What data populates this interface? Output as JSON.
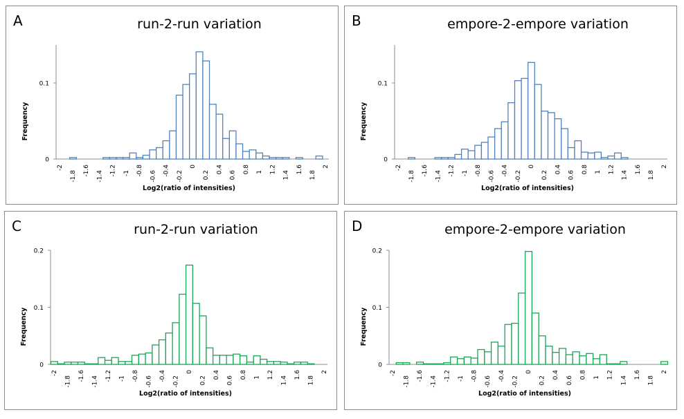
{
  "chart_data": [
    {
      "type": "bar",
      "panel_label": "A",
      "title": "run-2-run variation",
      "xlabel": "Log2(ratio of intensities)",
      "ylabel": "Frequency",
      "ylim": [
        0,
        0.15
      ],
      "yticks": [
        "0",
        "0.1"
      ],
      "ytick_values": [
        0,
        0.1
      ],
      "bar_color": "#4f81bd",
      "categories": [
        -2,
        -1.9,
        -1.8,
        -1.7,
        -1.6,
        -1.5,
        -1.4,
        -1.3,
        -1.2,
        -1.1,
        -1,
        -0.9,
        -0.8,
        -0.7,
        -0.6,
        -0.5,
        -0.4,
        -0.3,
        -0.2,
        -0.1,
        0,
        0.1,
        0.2,
        0.3,
        0.4,
        0.5,
        0.6,
        0.7,
        0.8,
        0.9,
        1,
        1.1,
        1.2,
        1.3,
        1.4,
        1.5,
        1.6,
        1.7,
        1.8,
        1.9,
        2
      ],
      "xtick_labels": [
        "-2",
        "-1.8",
        "-1.6",
        "-1.4",
        "-1.2",
        "-1",
        "-0.8",
        "-0.6",
        "-0.4",
        "-0.2",
        "0",
        "0.2",
        "0.4",
        "0.6",
        "0.8",
        "1",
        "1.2",
        "1.4",
        "1.6",
        "1.8",
        "2"
      ],
      "values": [
        0,
        0,
        0.002,
        0,
        0,
        0,
        0,
        0.002,
        0.002,
        0.002,
        0.002,
        0.008,
        0.002,
        0.005,
        0.012,
        0.015,
        0.024,
        0.037,
        0.084,
        0.098,
        0.112,
        0.141,
        0.129,
        0.072,
        0.059,
        0.027,
        0.037,
        0.02,
        0.01,
        0.012,
        0.008,
        0.004,
        0.002,
        0.002,
        0.002,
        0,
        0.002,
        0,
        0,
        0.004,
        0
      ]
    },
    {
      "type": "bar",
      "panel_label": "B",
      "title": "empore-2-empore variation",
      "xlabel": "Log2(ratio of intensities)",
      "ylabel": "Frequency",
      "ylim": [
        0,
        0.15
      ],
      "yticks": [
        "0",
        "0.1"
      ],
      "ytick_values": [
        0,
        0.1
      ],
      "bar_color": "#4f81bd",
      "categories": [
        -2,
        -1.9,
        -1.8,
        -1.7,
        -1.6,
        -1.5,
        -1.4,
        -1.3,
        -1.2,
        -1.1,
        -1,
        -0.9,
        -0.8,
        -0.7,
        -0.6,
        -0.5,
        -0.4,
        -0.3,
        -0.2,
        -0.1,
        0,
        0.1,
        0.2,
        0.3,
        0.4,
        0.5,
        0.6,
        0.7,
        0.8,
        0.9,
        1,
        1.1,
        1.2,
        1.3,
        1.4,
        1.5,
        1.6,
        1.7,
        1.8,
        1.9,
        2
      ],
      "xtick_labels": [
        "-2",
        "-1.8",
        "-1.6",
        "-1.4",
        "-1.2",
        "-1",
        "-0.8",
        "-0.6",
        "-0.4",
        "-0.2",
        "0",
        "0.2",
        "0.4",
        "0.6",
        "0.8",
        "1",
        "1.2",
        "1.4",
        "1.6",
        "1.8",
        "2"
      ],
      "values": [
        0,
        0,
        0.002,
        0,
        0,
        0,
        0.002,
        0.002,
        0.002,
        0.006,
        0.013,
        0.011,
        0.018,
        0.022,
        0.029,
        0.04,
        0.049,
        0.074,
        0.103,
        0.106,
        0.127,
        0.098,
        0.063,
        0.061,
        0.053,
        0.04,
        0.015,
        0.024,
        0.009,
        0.008,
        0.009,
        0.002,
        0.004,
        0.008,
        0.002,
        0,
        0,
        0,
        0,
        0,
        0
      ]
    },
    {
      "type": "bar",
      "panel_label": "C",
      "title": "run-2-run variation",
      "xlabel": "Log2(ratio of intensities)",
      "ylabel": "Frequency",
      "ylim": [
        0,
        0.2
      ],
      "yticks": [
        "0",
        "0.1",
        "0.2"
      ],
      "ytick_values": [
        0,
        0.1,
        0.2
      ],
      "bar_color": "#1aa556",
      "categories": [
        -2,
        -1.9,
        -1.8,
        -1.7,
        -1.6,
        -1.5,
        -1.4,
        -1.3,
        -1.2,
        -1.1,
        -1,
        -0.9,
        -0.8,
        -0.7,
        -0.6,
        -0.5,
        -0.4,
        -0.3,
        -0.2,
        -0.1,
        0,
        0.1,
        0.2,
        0.3,
        0.4,
        0.5,
        0.6,
        0.7,
        0.8,
        0.9,
        1,
        1.1,
        1.2,
        1.3,
        1.4,
        1.5,
        1.6,
        1.7,
        1.8,
        1.9,
        2
      ],
      "xtick_labels": [
        "-2",
        "-1.8",
        "-1.6",
        "-1.4",
        "-1.2",
        "-1",
        "-0.8",
        "-0.6",
        "-0.4",
        "-0.2",
        "0",
        "0.2",
        "0.4",
        "0.6",
        "0.8",
        "1",
        "1.2",
        "1.4",
        "1.6",
        "1.8",
        "2"
      ],
      "values": [
        0.005,
        0.001,
        0.004,
        0.004,
        0.004,
        0.001,
        0.001,
        0.012,
        0.007,
        0.012,
        0.005,
        0.005,
        0.016,
        0.018,
        0.02,
        0.034,
        0.043,
        0.055,
        0.073,
        0.123,
        0.174,
        0.107,
        0.085,
        0.029,
        0.016,
        0.016,
        0.016,
        0.018,
        0.015,
        0.004,
        0.015,
        0.009,
        0.005,
        0.005,
        0.004,
        0.001,
        0.004,
        0.004,
        0.001,
        0,
        0
      ]
    },
    {
      "type": "bar",
      "panel_label": "D",
      "title": "empore-2-empore variation",
      "xlabel": "Log2(ratio of intensities)",
      "ylabel": "Frequency",
      "ylim": [
        0,
        0.2
      ],
      "yticks": [
        "0",
        "0.1",
        "0.2"
      ],
      "ytick_values": [
        0,
        0.1,
        0.2
      ],
      "bar_color": "#1aa556",
      "categories": [
        -2,
        -1.9,
        -1.8,
        -1.7,
        -1.6,
        -1.5,
        -1.4,
        -1.3,
        -1.2,
        -1.1,
        -1,
        -0.9,
        -0.8,
        -0.7,
        -0.6,
        -0.5,
        -0.4,
        -0.3,
        -0.2,
        -0.1,
        0,
        0.1,
        0.2,
        0.3,
        0.4,
        0.5,
        0.6,
        0.7,
        0.8,
        0.9,
        1,
        1.1,
        1.2,
        1.3,
        1.4,
        1.5,
        1.6,
        1.7,
        1.8,
        1.9,
        2
      ],
      "xtick_labels": [
        "-2",
        "-1.8",
        "-1.6",
        "-1.4",
        "-1.2",
        "-1",
        "-0.8",
        "-0.6",
        "-0.4",
        "-0.2",
        "0",
        "0.2",
        "0.4",
        "0.6",
        "0.8",
        "1",
        "1.2",
        "1.4",
        "1.6",
        "1.8",
        "2"
      ],
      "values": [
        0,
        0.003,
        0.003,
        0,
        0.004,
        0.001,
        0.001,
        0.001,
        0.003,
        0.013,
        0.01,
        0.013,
        0.011,
        0.026,
        0.022,
        0.039,
        0.032,
        0.07,
        0.072,
        0.125,
        0.198,
        0.09,
        0.05,
        0.032,
        0.021,
        0.028,
        0.017,
        0.022,
        0.015,
        0.019,
        0.01,
        0.017,
        0.001,
        0.001,
        0.005,
        0,
        0,
        0,
        0,
        0,
        0.005
      ]
    }
  ]
}
